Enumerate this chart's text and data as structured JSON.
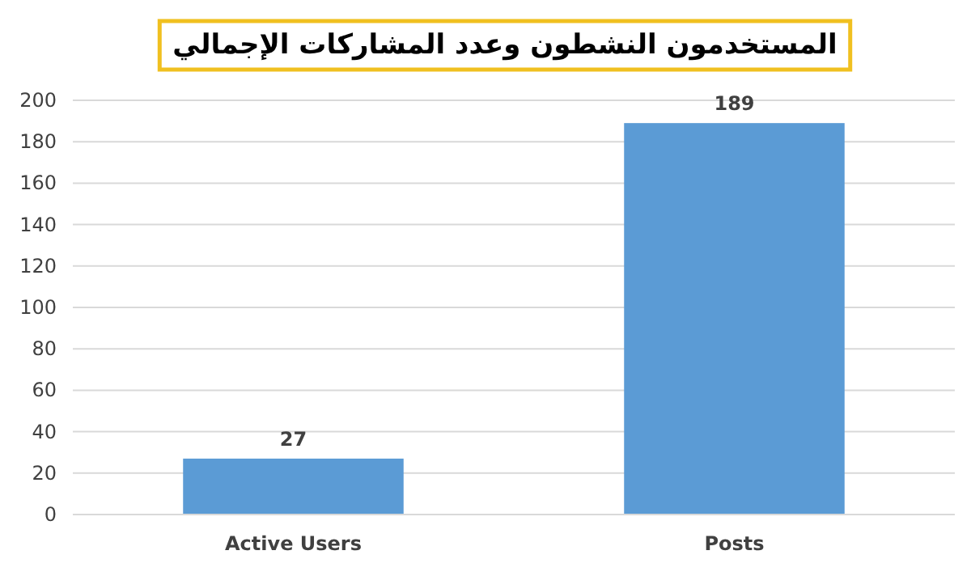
{
  "chart_data": {
    "type": "bar",
    "title": "المستخدمون النشطون وعدد المشاركات الإجمالي",
    "categories": [
      "Active Users",
      "Posts"
    ],
    "values": [
      27,
      189
    ],
    "color": "#5b9bd5",
    "ylim": [
      0,
      200
    ],
    "yticks": [
      0,
      20,
      40,
      60,
      80,
      100,
      120,
      140,
      160,
      180,
      200
    ],
    "grid": "y",
    "data_labels": true
  }
}
